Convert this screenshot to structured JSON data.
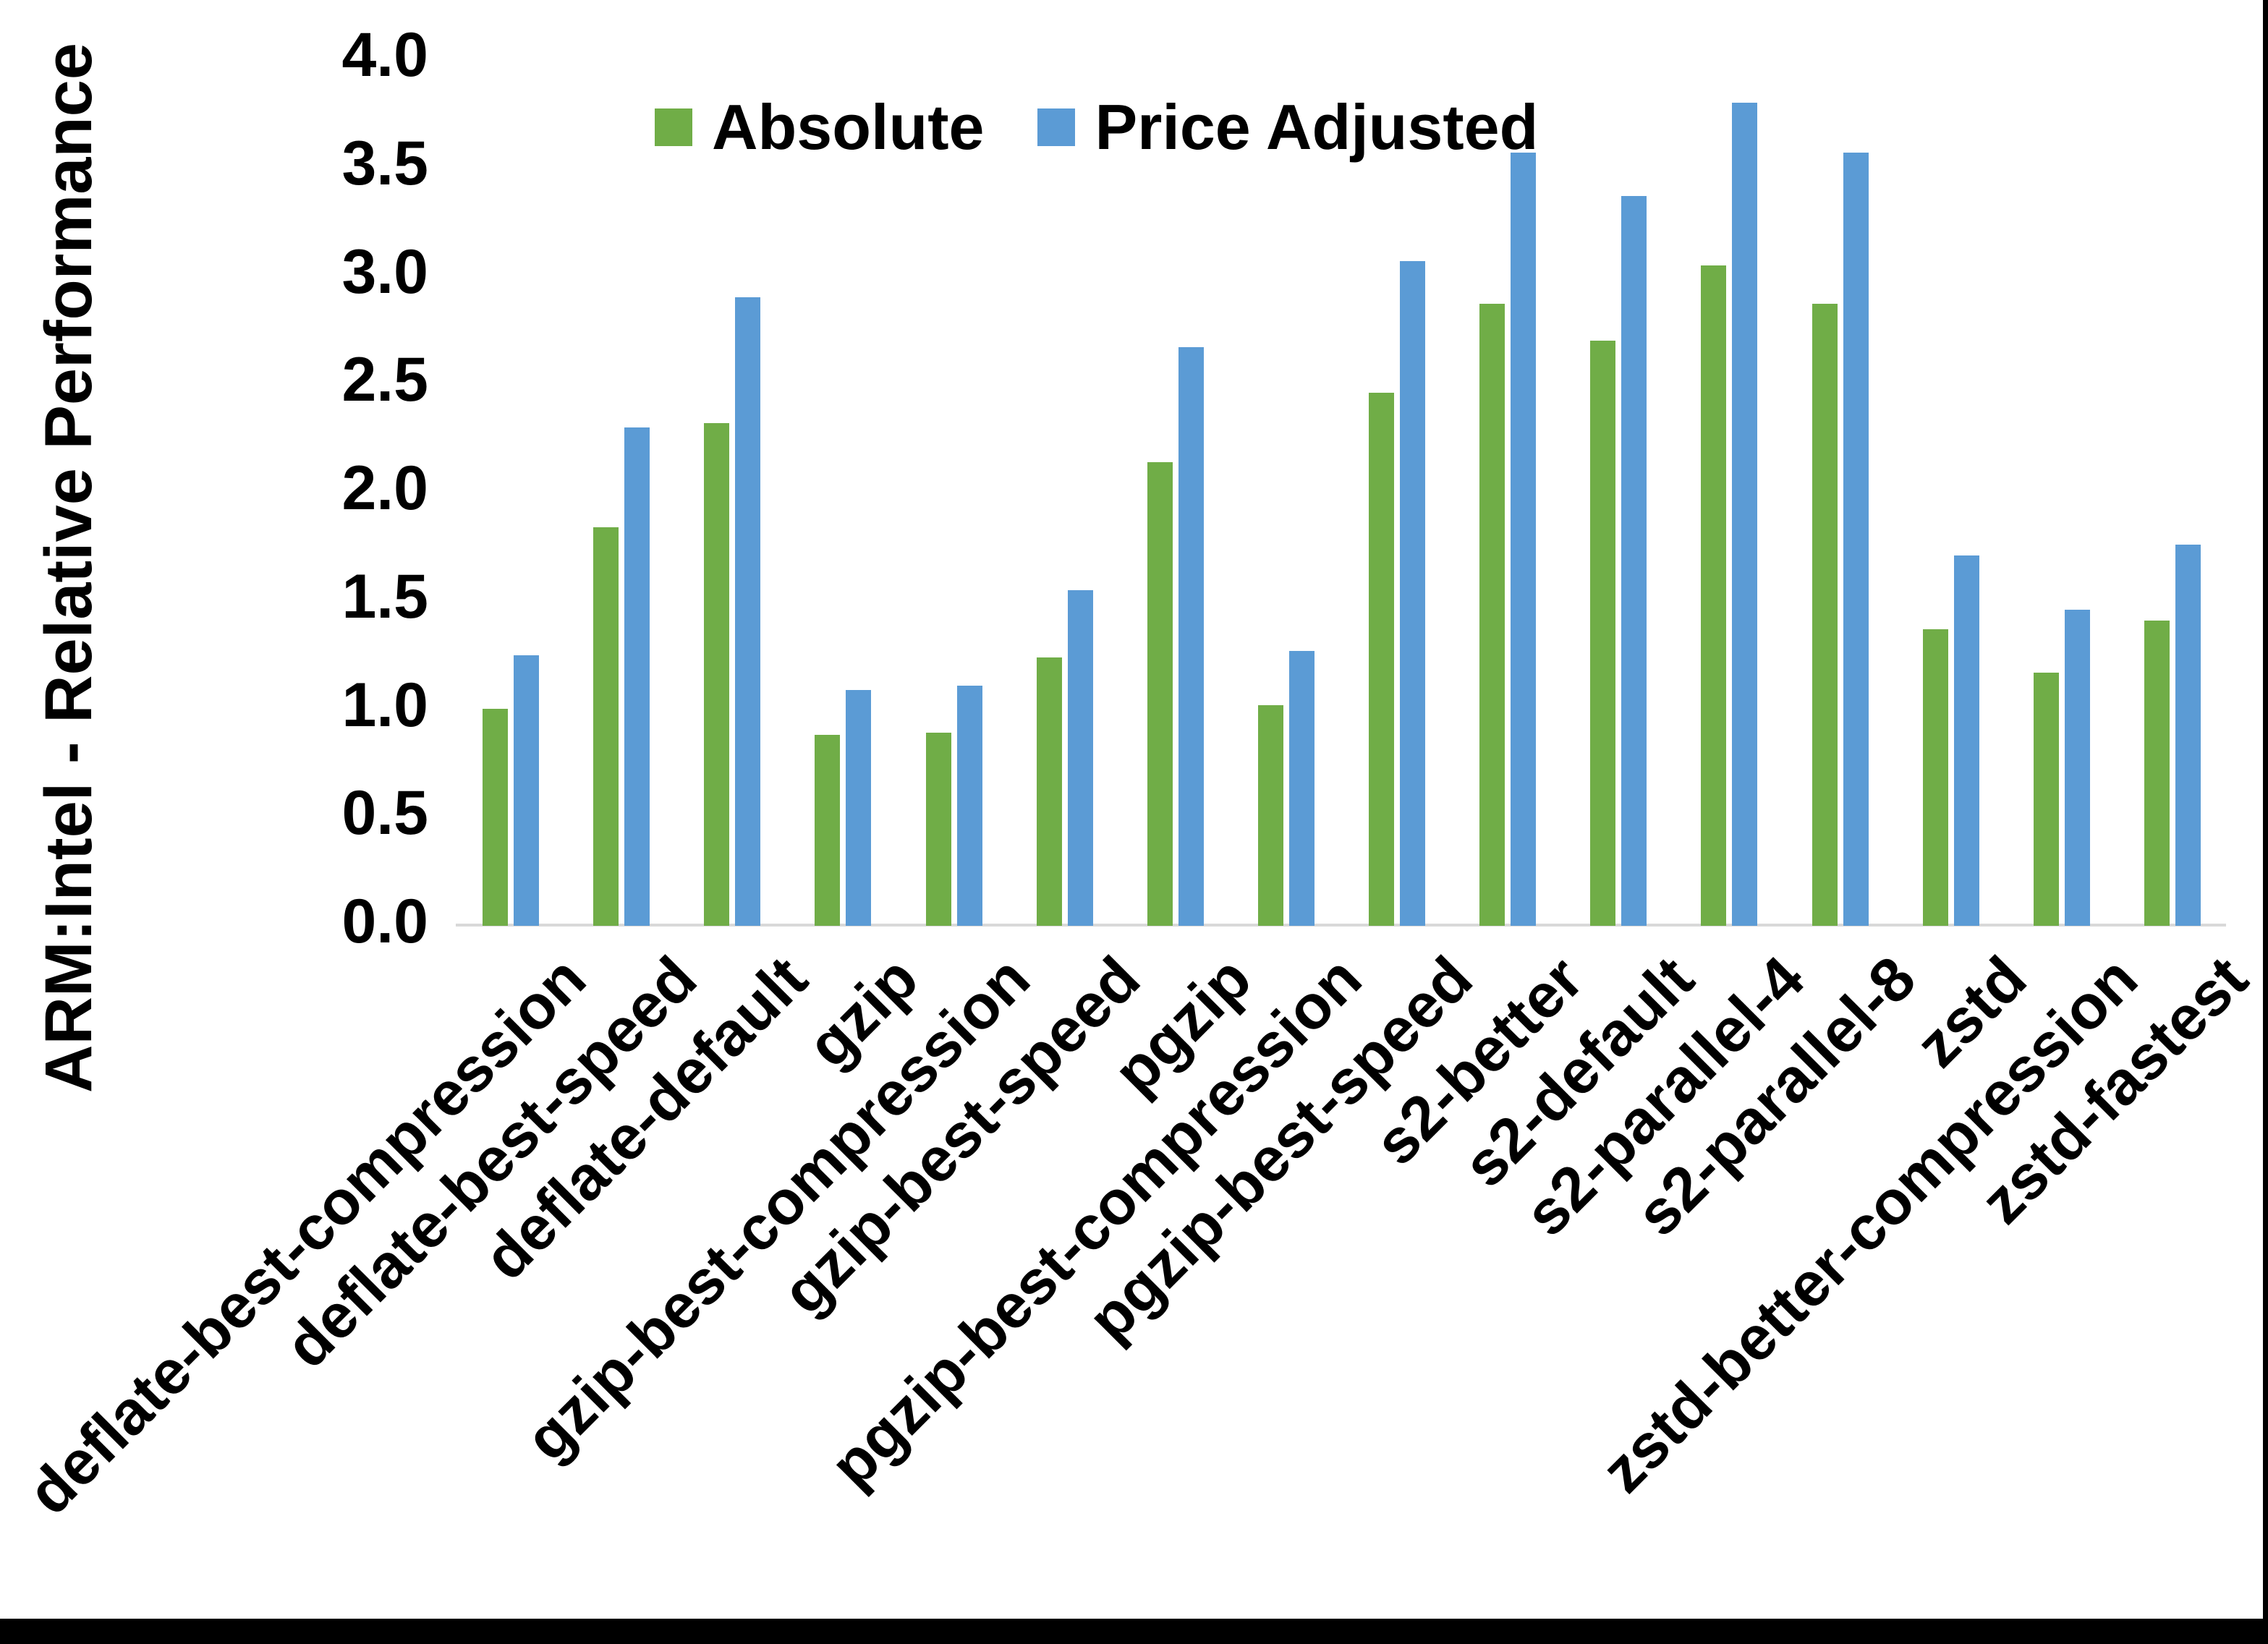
{
  "chart_data": {
    "type": "bar",
    "title": "",
    "xlabel": "",
    "ylabel": "ARM:Intel - Relative Performance",
    "ylim": [
      0.0,
      4.0
    ],
    "ytick_step": 0.5,
    "yticks": [
      "4.0",
      "3.5",
      "3.0",
      "2.5",
      "2.0",
      "1.5",
      "1.0",
      "0.5",
      "0.0"
    ],
    "grid": false,
    "legend_position": "top-center",
    "axis_line_color": "#d9d9d9",
    "text_color": "#000000",
    "categories": [
      "deflate-best-compression",
      "deflate-best-speed",
      "deflate-default",
      "gzip",
      "gzip-best-compression",
      "gzip-best-speed",
      "pgzip",
      "pgzip-best-compression",
      "pgzip-best-speed",
      "s2-better",
      "s2-default",
      "s2-parallel-4",
      "s2-parallel-8",
      "zstd",
      "zstd-better-compression",
      "zstd-fastest"
    ],
    "series": [
      {
        "name": "Absolute",
        "color": "#70AD47",
        "values": [
          1.0,
          1.84,
          2.32,
          0.88,
          0.89,
          1.24,
          2.14,
          1.02,
          2.46,
          2.87,
          2.7,
          3.05,
          2.87,
          1.37,
          1.17,
          1.41
        ]
      },
      {
        "name": "Price Adjusted",
        "color": "#5B9BD5",
        "values": [
          1.25,
          2.3,
          2.9,
          1.09,
          1.11,
          1.55,
          2.67,
          1.27,
          3.07,
          3.57,
          3.37,
          3.8,
          3.57,
          1.71,
          1.46,
          1.76
        ]
      }
    ]
  }
}
